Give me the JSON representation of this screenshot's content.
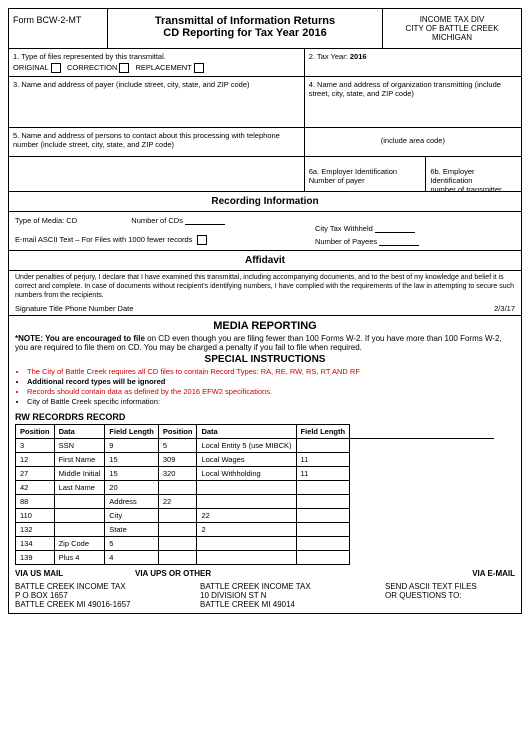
{
  "header": {
    "form_id": "Form BCW-2-MT",
    "title_line1": "Transmittal of Information Returns",
    "title_line2": "CD Reporting for Tax Year 2016",
    "right_line1": "INCOME TAX DIV",
    "right_line2": "CITY OF BATTLE CREEK",
    "right_line3": "MICHIGAN"
  },
  "box1": {
    "label": "1. Type of files represented by this transmittal.",
    "opt1": "ORIGINAL",
    "opt2": "CORRECTION",
    "opt3": "REPLACEMENT"
  },
  "box2": {
    "label": "2. Tax Year:",
    "value": "2016"
  },
  "box3": {
    "label": "3. Name and address of payer (include street, city, state, and ZIP code)"
  },
  "box4": {
    "label": "4. Name and address of organization transmitting (include street, city, state, and ZIP code)"
  },
  "box5": {
    "label": "5. Name and address of persons to contact about this processing with telephone number (include street, city, state, and ZIP code)",
    "areacode": "(include area code)"
  },
  "box6a": {
    "l1": "6a. Employer Identification",
    "l2": "Number of payer"
  },
  "box6b": {
    "l1": "6b. Employer Identification",
    "l2": "number of transmitter"
  },
  "recording": {
    "title": "Recording Information",
    "media": "Type of Media: CD",
    "num_cds": "Number of CDs",
    "ascii": "E-mail ASCII Text – For Files with 1000 fewer records",
    "withheld": "City Tax Withheld",
    "payees": "Number of Payees"
  },
  "affidavit": {
    "title": "Affidavit",
    "text": "Under penalties of perjury, I declare that I have examined this transmittal, including accompanying documents, and to the best of my knowledge and belief it is correct and complete. In case of documents without recipient's identifying numbers, I have complied with the requirements of the law in attempting to secure such numbers from the recipients.",
    "sig": "Signature  Title  Phone Number  Date",
    "date": "2/3/17"
  },
  "media": {
    "title": "MEDIA REPORTING",
    "note_label": "*NOTE: You are encouraged to file",
    "note_rest": " on CD even though you are filing fewer than 100 Forms W-2. If you have more than 100 Forms W-2, you are required to file them on CD. You may be charged a penalty if you fail to file when required."
  },
  "si": {
    "title": "SPECIAL INSTRUCTIONS",
    "li1": "The City of Battle Creek requires all CD files to contain Record Types: RA, RE, RW, RS, RT AND RF",
    "li2": "Additional record types will be ignored",
    "li3": "Records should contain data as defined by the 2016 EFW2 specifications.",
    "li4": "City of Battle Creek specific information:"
  },
  "rw": {
    "title": "RW RECORDRS RECORD",
    "h1": "Position",
    "h2": "Data",
    "h3": "Field Length",
    "h4": "Position",
    "h5": "Data",
    "h6": "Field Length",
    "rows": [
      [
        "3",
        "SSN",
        "9",
        "5",
        "Local Entity 5 (use MIBCK)",
        ""
      ],
      [
        "12",
        "First Name",
        "15",
        "309",
        "Local Wages",
        "11"
      ],
      [
        "27",
        "Middle Initial",
        "15",
        "320",
        "Local Withholding",
        "11"
      ],
      [
        "42",
        "Last Name",
        "20",
        "",
        "",
        ""
      ],
      [
        "88",
        "",
        "Address",
        "22",
        "",
        ""
      ],
      [
        "110",
        "",
        "City",
        "",
        "22",
        ""
      ],
      [
        "132",
        "",
        "State",
        "",
        "2",
        ""
      ],
      [
        "134",
        "Zip Code",
        "5",
        "",
        "",
        ""
      ],
      [
        "139",
        "Plus 4",
        "4",
        "",
        "",
        ""
      ]
    ]
  },
  "via": {
    "mail": "VIA US MAIL",
    "ups": "VIA UPS OR OTHER",
    "email": "VIA E-MAIL"
  },
  "addr": {
    "a1l1": "BATTLE CREEK INCOME TAX",
    "a1l2": "P O BOX 1657",
    "a1l3": "BATTLE CREEK MI  49016-1657",
    "a2l1": "BATTLE CREEK INCOME TAX",
    "a2l2": "10 DIVISION ST N",
    "a2l3": "BATTLE CREEK MI  49014",
    "a3l1": "SEND ASCII TEXT FILES",
    "a3l2": "OR QUESTIONS TO:"
  }
}
